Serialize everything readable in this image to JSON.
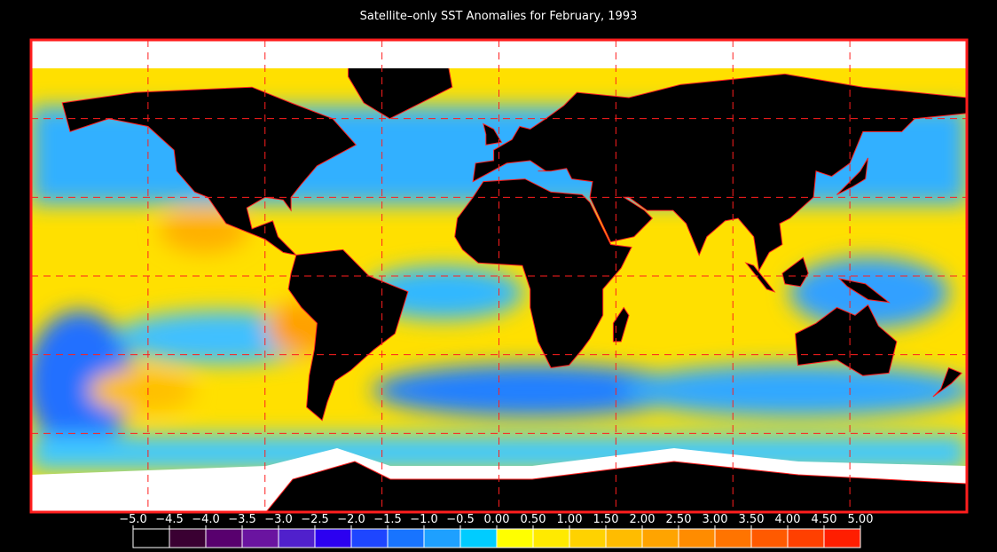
{
  "title": "Satellite–only SST Anomalies for February, 1993",
  "colorbar": {
    "ticks": [
      {
        "value": -5,
        "label": "−5.0"
      },
      {
        "value": -4.5,
        "label": "−4.5"
      },
      {
        "value": -4,
        "label": "−4.0"
      },
      {
        "value": -3.5,
        "label": "−3.5"
      },
      {
        "value": -3,
        "label": "−3.0"
      },
      {
        "value": -2.5,
        "label": "−2.5"
      },
      {
        "value": -2,
        "label": "−2.0"
      },
      {
        "value": -1.5,
        "label": "−1.5"
      },
      {
        "value": -1,
        "label": "−1.0"
      },
      {
        "value": -0.5,
        "label": "−0.5"
      },
      {
        "value": 0,
        "label": "0.00"
      },
      {
        "value": 0.5,
        "label": "0.50"
      },
      {
        "value": 1,
        "label": "1.00"
      },
      {
        "value": 1.5,
        "label": "1.50"
      },
      {
        "value": 2,
        "label": "2.00"
      },
      {
        "value": 2.5,
        "label": "2.50"
      },
      {
        "value": 3,
        "label": "3.00"
      },
      {
        "value": 3.5,
        "label": "3.50"
      },
      {
        "value": 4,
        "label": "4.00"
      },
      {
        "value": 4.5,
        "label": "4.50"
      },
      {
        "value": 5,
        "label": "5.00"
      }
    ],
    "colors": [
      "#000000",
      "#3a0032",
      "#58006e",
      "#6a14a0",
      "#5020cc",
      "#2c00f0",
      "#1e46ff",
      "#1874ff",
      "#1ea0ff",
      "#00ccff",
      "#ffff00",
      "#ffea00",
      "#ffd200",
      "#ffbc00",
      "#ffa400",
      "#ff8c00",
      "#ff7400",
      "#ff5a00",
      "#ff4000",
      "#ff1e00"
    ]
  }
}
